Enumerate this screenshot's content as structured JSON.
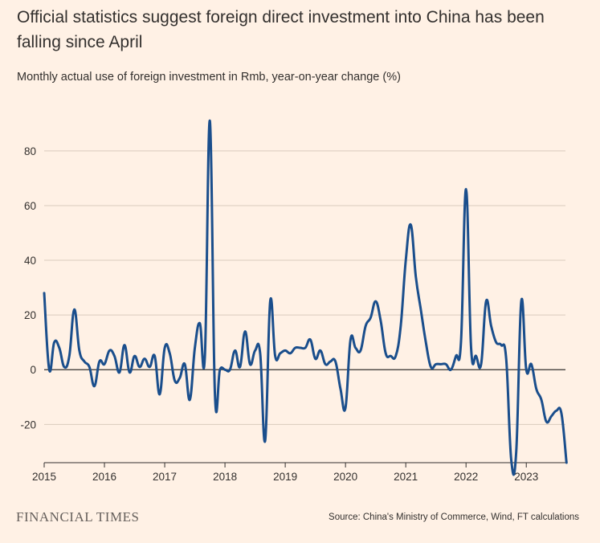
{
  "title": "Official statistics suggest foreign direct investment into China has been falling since April",
  "subtitle": "Monthly actual use of foreign investment in Rmb, year-on-year change (%)",
  "source": "Source: China's Ministry of Commerce, Wind, FT calculations",
  "logo": "FINANCIAL TIMES",
  "colors": {
    "background": "#fff1e5",
    "line": "#1a4e8c",
    "grid": "#d9cbbd",
    "zero": "#33302e"
  },
  "chart_data": {
    "type": "line",
    "title": "Official statistics suggest foreign direct investment into China has been falling since April",
    "subtitle": "Monthly actual use of foreign investment in Rmb, year-on-year change (%)",
    "xlabel": "",
    "ylabel": "",
    "xlim": [
      "2015-01",
      "2023-09"
    ],
    "ylim": [
      -34,
      92
    ],
    "x_ticks": [
      "2015",
      "2016",
      "2017",
      "2018",
      "2019",
      "2020",
      "2021",
      "2022",
      "2023"
    ],
    "y_ticks": [
      -20,
      0,
      20,
      40,
      60,
      80
    ],
    "grid": true,
    "series": [
      {
        "x": [
          "2015-01",
          "2015-02",
          "2015-03",
          "2015-04",
          "2015-05",
          "2015-06",
          "2015-07",
          "2015-08",
          "2015-09",
          "2015-10",
          "2015-11",
          "2015-12",
          "2016-01",
          "2016-02",
          "2016-03",
          "2016-04",
          "2016-05",
          "2016-06",
          "2016-07",
          "2016-08",
          "2016-09",
          "2016-10",
          "2016-11",
          "2016-12",
          "2017-01",
          "2017-02",
          "2017-03",
          "2017-04",
          "2017-05",
          "2017-06",
          "2017-07",
          "2017-08",
          "2017-09",
          "2017-10",
          "2017-11",
          "2017-12",
          "2018-01",
          "2018-02",
          "2018-03",
          "2018-04",
          "2018-05",
          "2018-06",
          "2018-07",
          "2018-08",
          "2018-09",
          "2018-10",
          "2018-11",
          "2018-12",
          "2019-01",
          "2019-02",
          "2019-03",
          "2019-04",
          "2019-05",
          "2019-06",
          "2019-07",
          "2019-08",
          "2019-09",
          "2019-10",
          "2019-11",
          "2019-12",
          "2020-01",
          "2020-02",
          "2020-03",
          "2020-04",
          "2020-05",
          "2020-06",
          "2020-07",
          "2020-08",
          "2020-09",
          "2020-10",
          "2020-11",
          "2020-12",
          "2021-01",
          "2021-02",
          "2021-03",
          "2021-04",
          "2021-05",
          "2021-06",
          "2021-07",
          "2021-08",
          "2021-09",
          "2021-10",
          "2021-11",
          "2021-12",
          "2022-01",
          "2022-02",
          "2022-03",
          "2022-04",
          "2022-05",
          "2022-06",
          "2022-07",
          "2022-08",
          "2022-09",
          "2022-10",
          "2022-11",
          "2022-12",
          "2023-01",
          "2023-02",
          "2023-03",
          "2023-04",
          "2023-05",
          "2023-06",
          "2023-07",
          "2023-08",
          "2023-09"
        ],
        "values": [
          28,
          0,
          10,
          8,
          1,
          5,
          22,
          7,
          3,
          1,
          -6,
          3,
          2,
          7,
          5,
          -1,
          9,
          -1,
          5,
          1,
          4,
          1,
          5,
          -9,
          8,
          6,
          -4,
          -3,
          2,
          -11,
          8,
          17,
          5,
          91,
          -9,
          0,
          0,
          0,
          7,
          1,
          14,
          2,
          7,
          6,
          -26,
          25,
          5,
          6,
          7,
          6,
          8,
          8,
          8,
          11,
          4,
          7,
          2,
          3,
          3,
          -7,
          -14,
          11,
          8,
          7,
          16,
          19,
          25,
          18,
          6,
          5,
          5,
          16,
          40,
          53,
          34,
          22,
          10,
          1,
          2,
          2,
          2,
          0,
          5,
          10,
          66,
          8,
          5,
          2,
          25,
          16,
          10,
          9,
          4,
          -33,
          -30,
          25,
          0,
          2,
          -7,
          -11,
          -19,
          -17,
          -15,
          -16,
          -34
        ]
      }
    ]
  }
}
